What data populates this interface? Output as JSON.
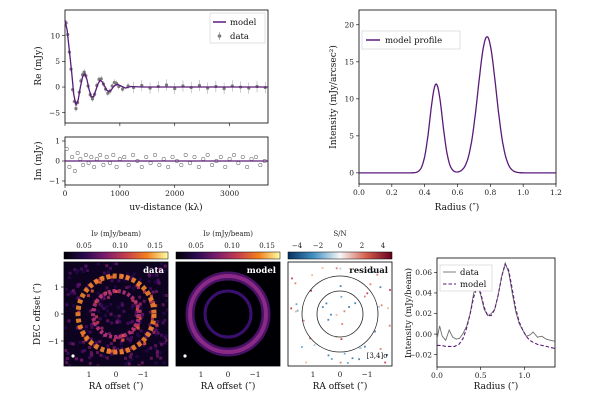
{
  "chart_data": [
    {
      "id": "re",
      "type": "scatter",
      "xlabel": "",
      "ylabel": "Re (mJy)",
      "xlim": [
        0,
        3700
      ],
      "ylim": [
        -7,
        15
      ],
      "xticks": [
        0,
        1000,
        2000,
        3000
      ],
      "yticks": [
        -5,
        0,
        5,
        10
      ],
      "legend": [
        "model",
        "data"
      ],
      "legend_position": "top-right",
      "model_line": [
        [
          0,
          13
        ],
        [
          40,
          11
        ],
        [
          80,
          7
        ],
        [
          120,
          3
        ],
        [
          160,
          -1.5
        ],
        [
          200,
          -3.5
        ],
        [
          240,
          -2.5
        ],
        [
          280,
          0
        ],
        [
          320,
          2
        ],
        [
          360,
          2.6
        ],
        [
          400,
          1.5
        ],
        [
          440,
          -0.5
        ],
        [
          480,
          -1.9
        ],
        [
          520,
          -1.9
        ],
        [
          560,
          -0.7
        ],
        [
          600,
          0.6
        ],
        [
          640,
          1.3
        ],
        [
          680,
          1
        ],
        [
          720,
          0.2
        ],
        [
          760,
          -0.6
        ],
        [
          800,
          -0.9
        ],
        [
          840,
          -0.6
        ],
        [
          880,
          0
        ],
        [
          920,
          0.4
        ],
        [
          960,
          0.5
        ],
        [
          1000,
          0.3
        ],
        [
          1100,
          -0.2
        ],
        [
          1200,
          0.1
        ],
        [
          1400,
          0
        ],
        [
          3700,
          0
        ]
      ],
      "data_points": [
        [
          20,
          12.5
        ],
        [
          50,
          10.2
        ],
        [
          80,
          6.8
        ],
        [
          110,
          3.5
        ],
        [
          140,
          -0.5
        ],
        [
          170,
          -2.8
        ],
        [
          200,
          -4.2
        ],
        [
          230,
          -3
        ],
        [
          260,
          -1
        ],
        [
          290,
          1.2
        ],
        [
          320,
          2.4
        ],
        [
          350,
          2.9
        ],
        [
          380,
          2.2
        ],
        [
          420,
          0.2
        ],
        [
          460,
          -1.5
        ],
        [
          500,
          -2.3
        ],
        [
          540,
          -1.4
        ],
        [
          580,
          0.3
        ],
        [
          620,
          1.5
        ],
        [
          660,
          1.6
        ],
        [
          700,
          0.6
        ],
        [
          740,
          -0.4
        ],
        [
          780,
          -1.2
        ],
        [
          820,
          -0.8
        ],
        [
          860,
          0.2
        ],
        [
          900,
          0.9
        ],
        [
          940,
          0.7
        ],
        [
          980,
          0.1
        ],
        [
          1050,
          -0.4
        ],
        [
          1150,
          0.2
        ],
        [
          1250,
          -0.1
        ],
        [
          1400,
          0.3
        ],
        [
          1550,
          -0.2
        ],
        [
          1700,
          0.1
        ],
        [
          1850,
          0.4
        ],
        [
          2000,
          -0.3
        ],
        [
          2150,
          0.2
        ],
        [
          2300,
          -0.1
        ],
        [
          2450,
          0.3
        ],
        [
          2600,
          -0.2
        ],
        [
          2750,
          0.1
        ],
        [
          2900,
          -0.3
        ],
        [
          3050,
          0.2
        ],
        [
          3200,
          0
        ],
        [
          3350,
          -0.2
        ],
        [
          3500,
          0.1
        ],
        [
          3650,
          -0.1
        ]
      ]
    },
    {
      "id": "im",
      "type": "scatter",
      "xlabel": "uv-distance (kλ)",
      "ylabel": "Im (mJy)",
      "xlim": [
        0,
        3700
      ],
      "ylim": [
        -1.2,
        1.2
      ],
      "xticks": [
        0,
        1000,
        2000,
        3000
      ],
      "yticks": [
        -1,
        0,
        1
      ],
      "model_line": [
        [
          0,
          0
        ],
        [
          3700,
          0
        ]
      ],
      "data_points": [
        [
          30,
          0.6
        ],
        [
          80,
          -0.3
        ],
        [
          130,
          0.2
        ],
        [
          180,
          -0.5
        ],
        [
          230,
          0.4
        ],
        [
          280,
          0.1
        ],
        [
          330,
          -0.2
        ],
        [
          380,
          0.3
        ],
        [
          430,
          -0.1
        ],
        [
          480,
          0.2
        ],
        [
          530,
          -0.3
        ],
        [
          580,
          0.1
        ],
        [
          640,
          0.3
        ],
        [
          700,
          -0.2
        ],
        [
          760,
          0.2
        ],
        [
          820,
          -0.1
        ],
        [
          880,
          0.3
        ],
        [
          940,
          -0.3
        ],
        [
          1000,
          0.1
        ],
        [
          1080,
          0.2
        ],
        [
          1160,
          -0.2
        ],
        [
          1240,
          0.3
        ],
        [
          1320,
          0
        ],
        [
          1400,
          -0.3
        ],
        [
          1480,
          0.2
        ],
        [
          1560,
          -0.1
        ],
        [
          1640,
          0.3
        ],
        [
          1720,
          -0.2
        ],
        [
          1800,
          0.1
        ],
        [
          1880,
          -0.3
        ],
        [
          1960,
          0.2
        ],
        [
          2040,
          0
        ],
        [
          2120,
          -0.2
        ],
        [
          2200,
          0.3
        ],
        [
          2280,
          -0.1
        ],
        [
          2360,
          0.2
        ],
        [
          2440,
          -0.3
        ],
        [
          2520,
          0.1
        ],
        [
          2600,
          0.3
        ],
        [
          2680,
          -0.2
        ],
        [
          2760,
          0
        ],
        [
          2840,
          0.2
        ],
        [
          2920,
          -0.3
        ],
        [
          3000,
          0.1
        ],
        [
          3080,
          0.3
        ],
        [
          3160,
          -0.1
        ],
        [
          3240,
          0.2
        ],
        [
          3320,
          -0.3
        ],
        [
          3400,
          0.1
        ],
        [
          3480,
          0.2
        ],
        [
          3560,
          -0.2
        ],
        [
          3640,
          0
        ]
      ]
    },
    {
      "id": "profile",
      "type": "line",
      "xlabel": "Radius (″)",
      "ylabel": "Intensity (mJy/arcsec²)",
      "xlim": [
        0,
        1.2
      ],
      "ylim": [
        -1.5,
        22
      ],
      "xticks": [
        0.0,
        0.2,
        0.4,
        0.6,
        0.8,
        1.0,
        1.2
      ],
      "yticks": [
        0,
        5,
        10,
        15,
        20
      ],
      "legend": [
        "model profile"
      ],
      "legend_position": "top-left",
      "peaks": [
        {
          "r": 0.47,
          "amp": 12.0,
          "sigma": 0.038
        },
        {
          "r": 0.78,
          "amp": 18.4,
          "sigma": 0.055
        }
      ]
    },
    {
      "id": "img-data",
      "type": "heatmap",
      "label": "data",
      "xlabel": "RA offset (″)",
      "ylabel": "DEC offset (″)",
      "colorbar_label": "Iν (mJy/beam)",
      "colorbar_ticks": [
        "0.05",
        "0.10",
        "0.15"
      ],
      "xticks": [
        "1",
        "0",
        "−1"
      ],
      "yticks": [
        "1",
        "0",
        "−1"
      ]
    },
    {
      "id": "img-model",
      "type": "heatmap",
      "label": "model",
      "xlabel": "RA offset (″)",
      "colorbar_label": "Iν (mJy/beam)",
      "colorbar_ticks": [
        "0.05",
        "0.10",
        "0.15"
      ],
      "xticks": [
        "1",
        "0",
        "−1"
      ]
    },
    {
      "id": "img-residual",
      "type": "heatmap",
      "label": "residual",
      "annotation": "[3,4]σ",
      "xlabel": "RA offset (″)",
      "colorbar_label": "S/N",
      "colorbar_ticks": [
        "−4",
        "−2",
        "0",
        "2",
        "4"
      ],
      "xticks": [
        "1",
        "0",
        "−1"
      ]
    },
    {
      "id": "cmp",
      "type": "line",
      "xlabel": "Radius (″)",
      "ylabel": "Intensity (mJy/beam)",
      "xlim": [
        0,
        1.35
      ],
      "ylim": [
        -0.032,
        0.074
      ],
      "xticks": [
        0.0,
        0.5,
        1.0
      ],
      "yticks": [
        -0.02,
        0.0,
        0.02,
        0.04,
        0.06
      ],
      "legend": [
        "data",
        "model"
      ],
      "legend_position": "top-left",
      "series": [
        {
          "name": "data",
          "x": [
            0,
            0.03,
            0.06,
            0.1,
            0.14,
            0.18,
            0.22,
            0.26,
            0.3,
            0.34,
            0.38,
            0.42,
            0.46,
            0.5,
            0.54,
            0.58,
            0.62,
            0.66,
            0.7,
            0.74,
            0.78,
            0.82,
            0.86,
            0.9,
            0.94,
            0.98,
            1.02,
            1.06,
            1.1,
            1.15,
            1.2,
            1.25,
            1.3,
            1.35
          ],
          "y": [
            -0.005,
            0.008,
            -0.002,
            -0.006,
            0.004,
            -0.003,
            -0.005,
            -0.004,
            0.001,
            0.008,
            0.02,
            0.04,
            0.048,
            0.038,
            0.024,
            0.018,
            0.02,
            0.024,
            0.038,
            0.056,
            0.069,
            0.06,
            0.04,
            0.022,
            0.01,
            0.004,
            -0.002,
            -0.001,
            0.002,
            -0.003,
            -0.002,
            -0.005,
            -0.006,
            -0.007
          ]
        },
        {
          "name": "model",
          "x": [
            0,
            0.05,
            0.1,
            0.15,
            0.2,
            0.25,
            0.3,
            0.34,
            0.38,
            0.42,
            0.46,
            0.5,
            0.54,
            0.58,
            0.62,
            0.66,
            0.7,
            0.74,
            0.78,
            0.82,
            0.86,
            0.9,
            0.94,
            0.98,
            1.02,
            1.06,
            1.1,
            1.15,
            1.2,
            1.25,
            1.3,
            1.35
          ],
          "y": [
            -0.011,
            -0.011,
            -0.012,
            -0.012,
            -0.012,
            -0.01,
            -0.004,
            0.006,
            0.02,
            0.036,
            0.046,
            0.04,
            0.026,
            0.018,
            0.018,
            0.024,
            0.038,
            0.056,
            0.068,
            0.062,
            0.044,
            0.025,
            0.012,
            0.004,
            -0.002,
            -0.006,
            -0.008,
            -0.01,
            -0.011,
            -0.012,
            -0.013,
            -0.014
          ]
        }
      ]
    }
  ],
  "colors": {
    "model": "#5a1a7a",
    "data": "#7a7a7a",
    "data_line": "#6e6e6e"
  }
}
